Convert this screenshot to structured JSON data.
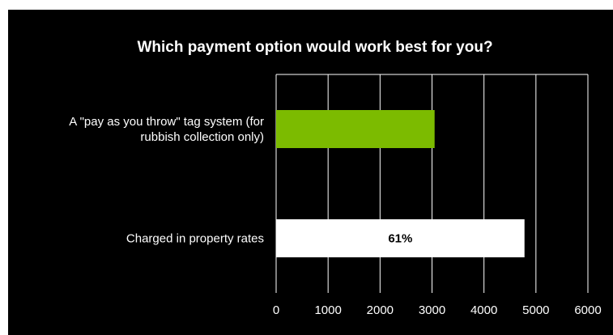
{
  "chart_data": {
    "type": "bar",
    "orientation": "horizontal",
    "title": "Which payment option would work best for you?",
    "categories": [
      [
        "A \"pay as you throw\" tag system (for",
        "rubbish collection only)"
      ],
      [
        "Charged in property rates"
      ]
    ],
    "values": [
      3050,
      4780
    ],
    "data_labels": [
      "",
      "61%"
    ],
    "colors": [
      "#7cbb00",
      "#ffffff"
    ],
    "data_label_color": "#000000",
    "xlim": [
      0,
      6000
    ],
    "x_ticks": [
      "0",
      "1000",
      "2000",
      "3000",
      "4000",
      "5000",
      "6000"
    ],
    "grid": true,
    "background": "#000000",
    "grid_color": "#ffffff"
  }
}
